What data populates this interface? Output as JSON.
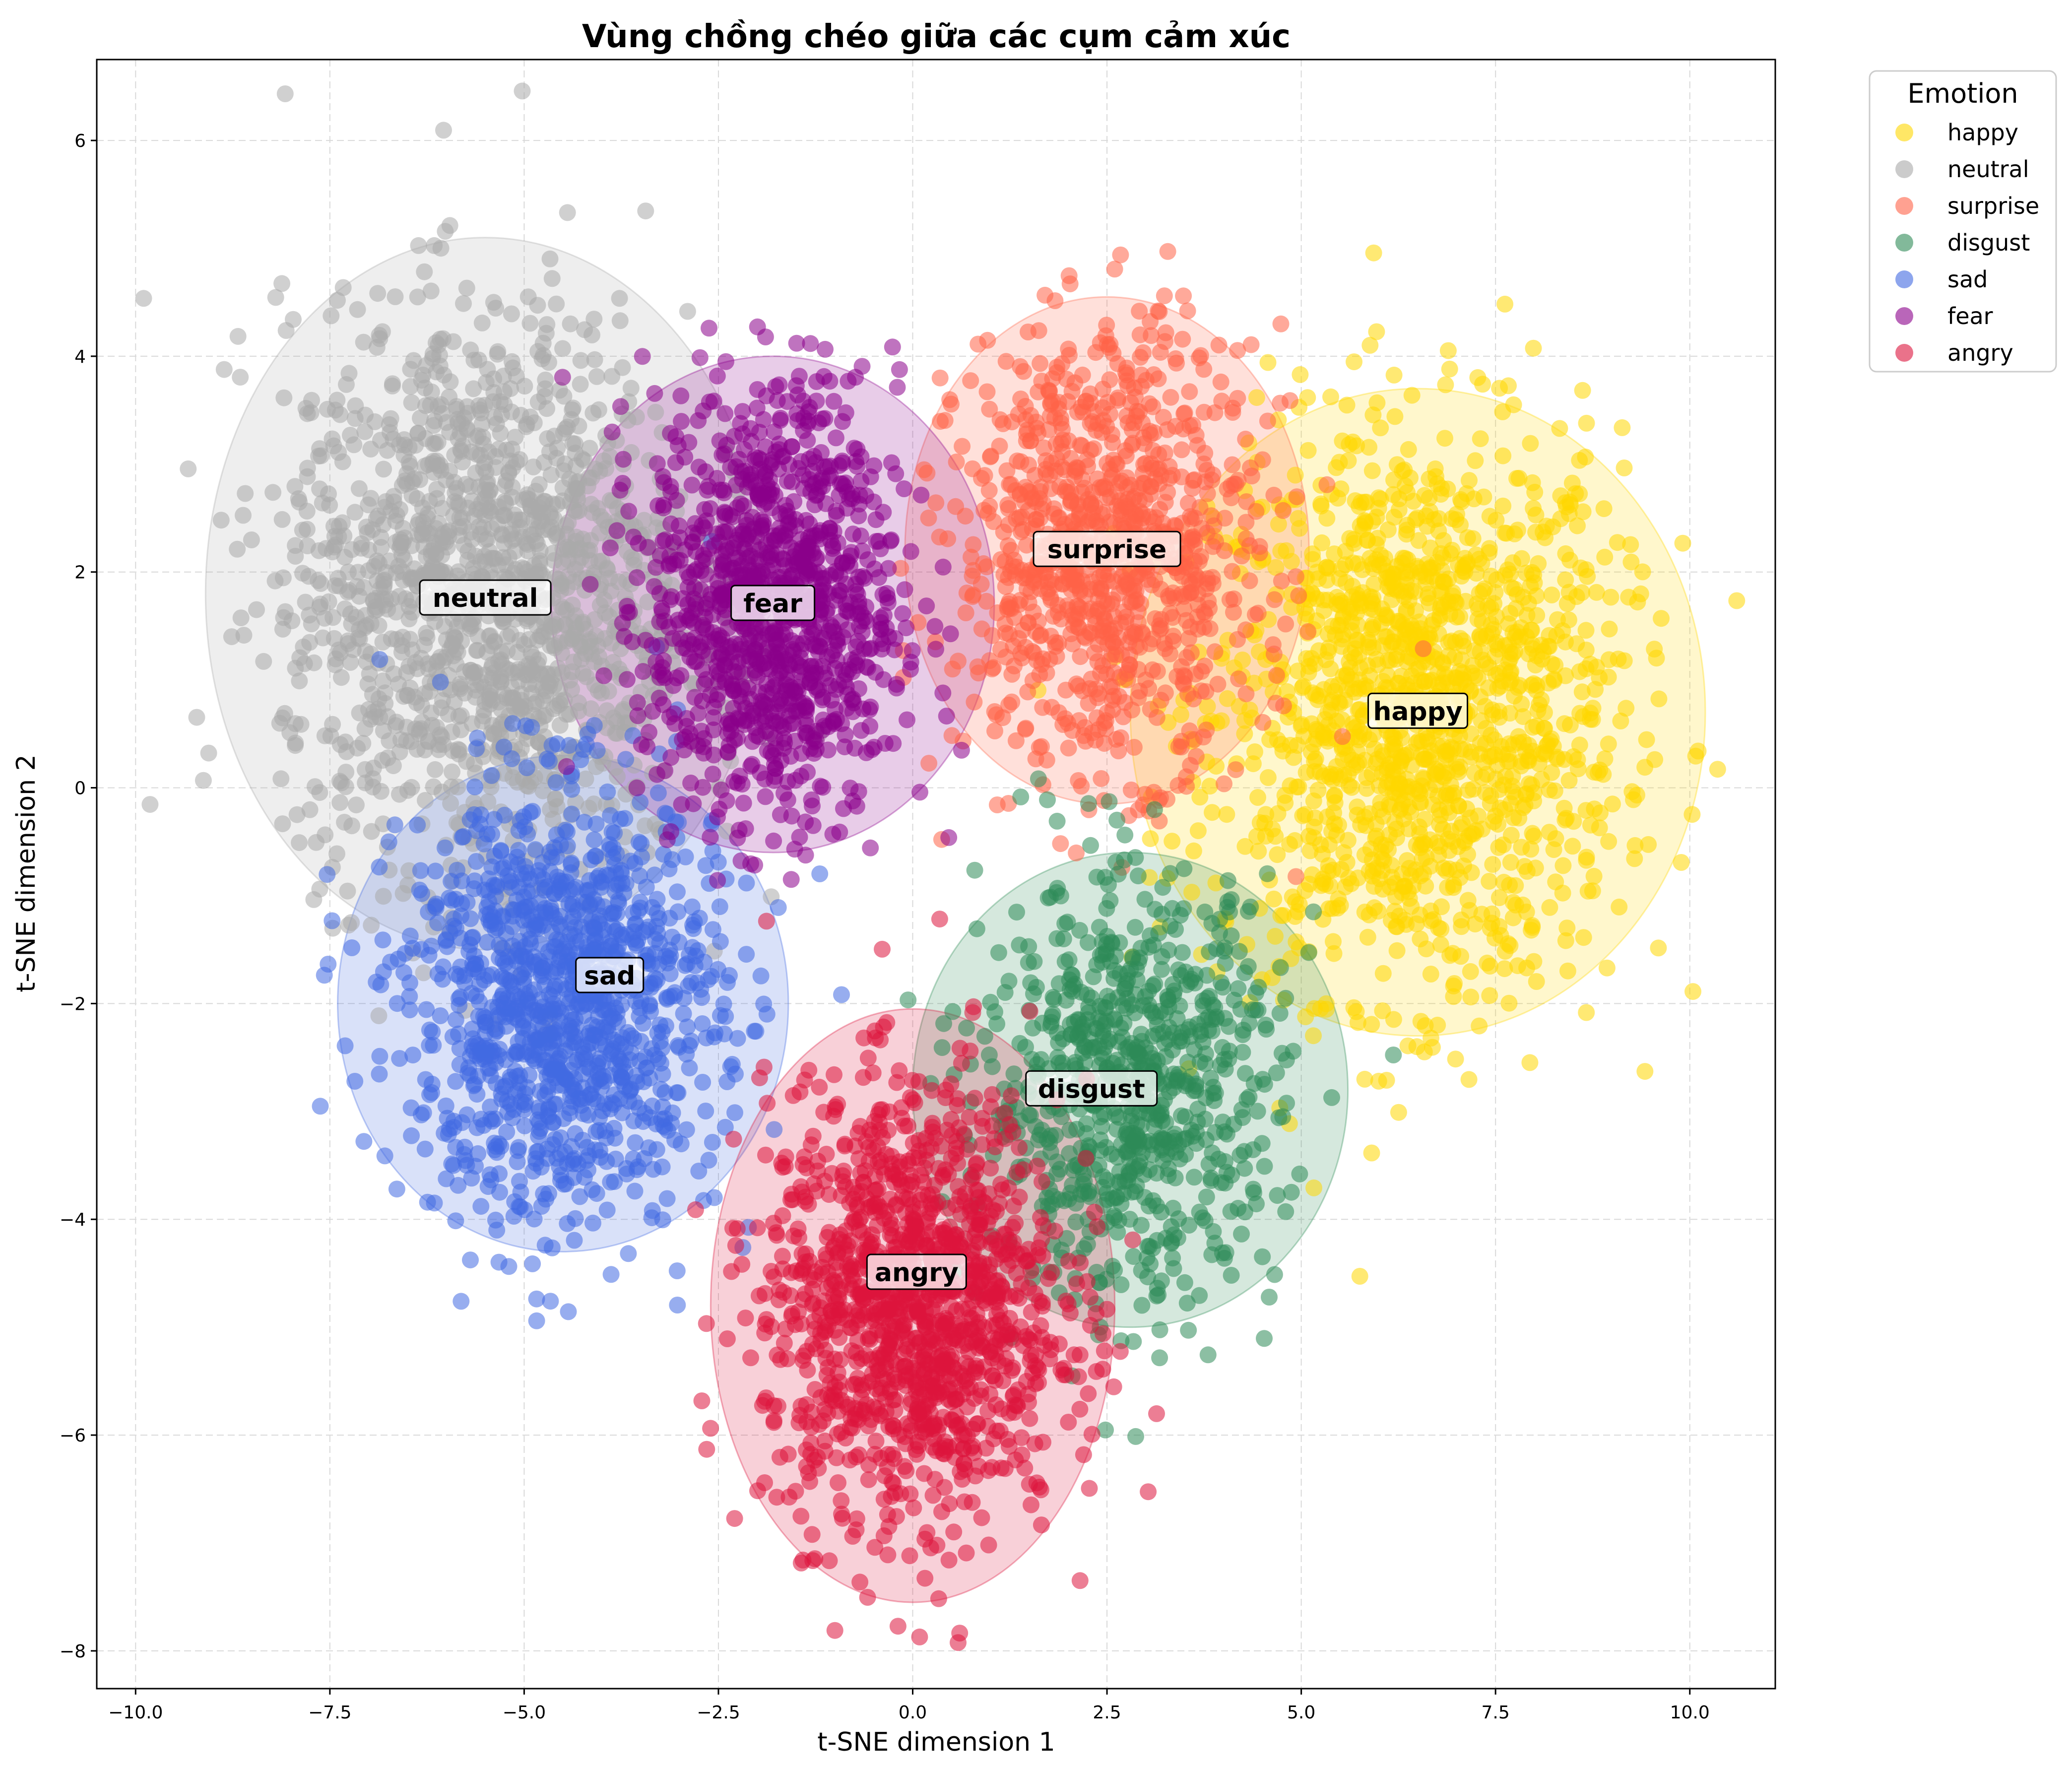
{
  "chart_data": {
    "type": "scatter",
    "title": "Vùng chồng chéo giữa các cụm cảm xúc",
    "xlabel": "t-SNE dimension 1",
    "ylabel": "t-SNE dimension 2",
    "xlim": [
      -10.5,
      11.1
    ],
    "ylim": [
      -8.35,
      6.75
    ],
    "xticks": [
      -10.0,
      -7.5,
      -5.0,
      -2.5,
      0.0,
      2.5,
      5.0,
      7.5,
      10.0
    ],
    "xtick_labels": [
      "−10.0",
      "−7.5",
      "−5.0",
      "−2.5",
      "0.0",
      "2.5",
      "5.0",
      "7.5",
      "10.0"
    ],
    "yticks": [
      -8,
      -6,
      -4,
      -2,
      0,
      2,
      4,
      6
    ],
    "ytick_labels": [
      "−8",
      "−6",
      "−4",
      "−2",
      "0",
      "2",
      "4",
      "6"
    ],
    "grid": true,
    "legend": {
      "title": "Emotion",
      "placement": "outside-upper-right"
    },
    "series": [
      {
        "name": "happy",
        "color": "#FFD700",
        "center": [
          6.5,
          0.7
        ],
        "spread": [
          1.3,
          1.3
        ],
        "radius": [
          3.7,
          3.0
        ],
        "label_pos": [
          6.5,
          0.7
        ],
        "count": 1500
      },
      {
        "name": "neutral",
        "color": "#A9A9A9",
        "center": [
          -5.5,
          1.8
        ],
        "spread": [
          1.3,
          1.3
        ],
        "radius": [
          3.6,
          3.3
        ],
        "label_pos": [
          -5.5,
          1.75
        ],
        "count": 1500
      },
      {
        "name": "surprise",
        "color": "#FF6347",
        "center": [
          2.5,
          2.2
        ],
        "spread": [
          0.95,
          1.0
        ],
        "radius": [
          2.6,
          2.35
        ],
        "label_pos": [
          2.5,
          2.2
        ],
        "count": 1000
      },
      {
        "name": "disgust",
        "color": "#2E8B57",
        "center": [
          2.8,
          -2.8
        ],
        "spread": [
          0.95,
          0.95
        ],
        "radius": [
          2.8,
          2.2
        ],
        "label_pos": [
          2.3,
          -2.8
        ],
        "count": 800
      },
      {
        "name": "sad",
        "color": "#4169E1",
        "center": [
          -4.5,
          -2.0
        ],
        "spread": [
          1.0,
          1.0
        ],
        "radius": [
          2.9,
          2.3
        ],
        "label_pos": [
          -3.9,
          -1.75
        ],
        "count": 1200
      },
      {
        "name": "fear",
        "color": "#8B008B",
        "center": [
          -1.8,
          1.7
        ],
        "spread": [
          0.8,
          1.0
        ],
        "radius": [
          2.85,
          2.3
        ],
        "label_pos": [
          -1.8,
          1.7
        ],
        "count": 1100
      },
      {
        "name": "angry",
        "color": "#DC143C",
        "center": [
          0.0,
          -4.8
        ],
        "spread": [
          0.95,
          1.0
        ],
        "radius": [
          2.6,
          2.75
        ],
        "label_pos": [
          0.05,
          -4.5
        ],
        "count": 1300
      }
    ]
  }
}
